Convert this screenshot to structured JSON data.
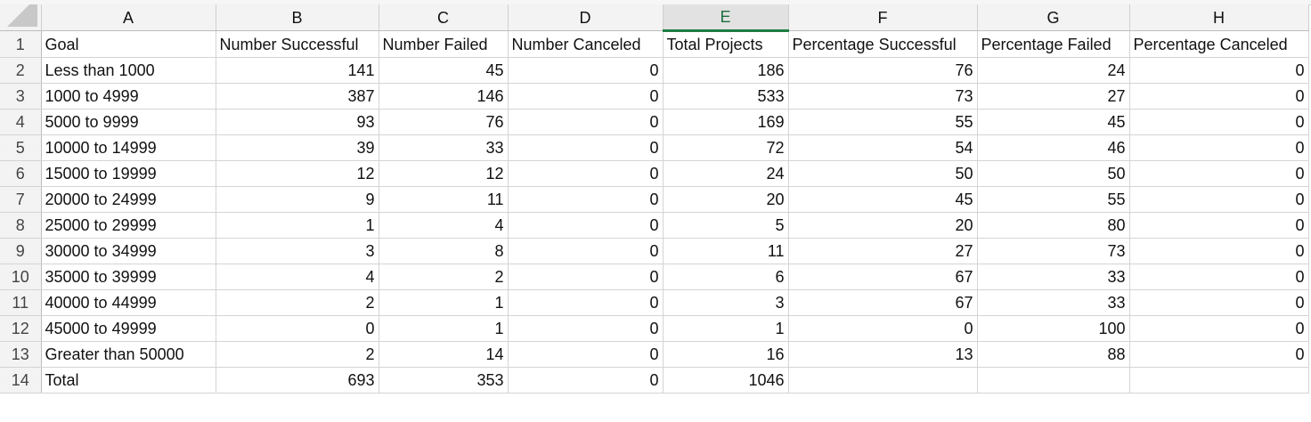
{
  "columns": [
    "A",
    "B",
    "C",
    "D",
    "E",
    "F",
    "G",
    "H"
  ],
  "selected_column": "E",
  "header_row": {
    "row_number": "1",
    "cells": [
      "Goal",
      "Number Successful",
      "Number Failed",
      "Number Canceled",
      "Total Projects",
      "Percentage Successful",
      "Percentage Failed",
      "Percentage Canceled"
    ]
  },
  "rows": [
    {
      "row_number": "2",
      "cells": [
        "Less than 1000",
        "141",
        "45",
        "0",
        "186",
        "76",
        "24",
        "0"
      ]
    },
    {
      "row_number": "3",
      "cells": [
        "1000 to 4999",
        "387",
        "146",
        "0",
        "533",
        "73",
        "27",
        "0"
      ]
    },
    {
      "row_number": "4",
      "cells": [
        "5000 to 9999",
        "93",
        "76",
        "0",
        "169",
        "55",
        "45",
        "0"
      ]
    },
    {
      "row_number": "5",
      "cells": [
        "10000 to 14999",
        "39",
        "33",
        "0",
        "72",
        "54",
        "46",
        "0"
      ]
    },
    {
      "row_number": "6",
      "cells": [
        "15000 to 19999",
        "12",
        "12",
        "0",
        "24",
        "50",
        "50",
        "0"
      ]
    },
    {
      "row_number": "7",
      "cells": [
        "20000 to 24999",
        "9",
        "11",
        "0",
        "20",
        "45",
        "55",
        "0"
      ]
    },
    {
      "row_number": "8",
      "cells": [
        "25000 to 29999",
        "1",
        "4",
        "0",
        "5",
        "20",
        "80",
        "0"
      ]
    },
    {
      "row_number": "9",
      "cells": [
        "30000 to 34999",
        "3",
        "8",
        "0",
        "11",
        "27",
        "73",
        "0"
      ]
    },
    {
      "row_number": "10",
      "cells": [
        "35000 to 39999",
        "4",
        "2",
        "0",
        "6",
        "67",
        "33",
        "0"
      ]
    },
    {
      "row_number": "11",
      "cells": [
        "40000 to 44999",
        "2",
        "1",
        "0",
        "3",
        "67",
        "33",
        "0"
      ]
    },
    {
      "row_number": "12",
      "cells": [
        "45000 to 49999",
        "0",
        "1",
        "0",
        "1",
        "0",
        "100",
        "0"
      ]
    },
    {
      "row_number": "13",
      "cells": [
        "Greater than 50000",
        "2",
        "14",
        "0",
        "16",
        "13",
        "88",
        "0"
      ]
    },
    {
      "row_number": "14",
      "cells": [
        "Total",
        "693",
        "353",
        "0",
        "1046",
        "",
        "",
        ""
      ]
    }
  ],
  "colors": {
    "accent": "#1e7c45",
    "header_bg": "#f3f3f3",
    "gridline": "#d4d4d4"
  }
}
